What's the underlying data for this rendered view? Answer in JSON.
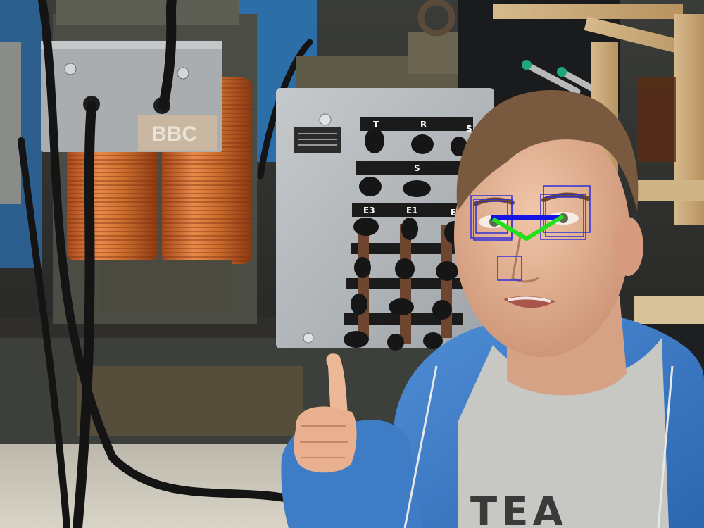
{
  "photo": {
    "brand_plate_text": "BBC",
    "panel_row1_labels": [
      "T",
      "R",
      "S"
    ],
    "panel_row2_label": "S",
    "panel_row3_labels": [
      "E3",
      "E1",
      "E2"
    ],
    "shirt_text": "TEA"
  },
  "overlay": {
    "box_color": "#2f2fd6",
    "eye_line_color": "#1414e6",
    "v_line_color": "#22e01a"
  }
}
